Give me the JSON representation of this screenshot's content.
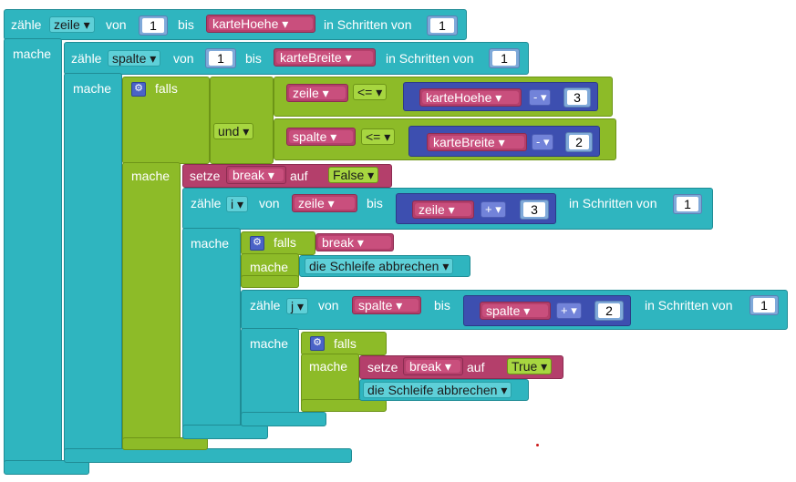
{
  "keywords": {
    "count": "zähle",
    "from": "von",
    "to": "bis",
    "step": "in Schritten von",
    "do": "mache",
    "if": "falls",
    "and": "und",
    "set": "setze",
    "on": "auf",
    "break_loop": "die Schleife abbrechen"
  },
  "vars": {
    "zeile": "zeile ▾",
    "spalte": "spalte ▾",
    "i": "i ▾",
    "j": "j ▾",
    "break": "break ▾",
    "karteHoehe": "karteHoehe ▾",
    "karteBreite": "karteBreite ▾"
  },
  "ops": {
    "le": "<= ▾",
    "minus": "- ▾",
    "plus": "+ ▾",
    "and_dd": "und ▾",
    "break_dd": "die Schleife abbrechen ▾"
  },
  "bools": {
    "false": "False ▾",
    "true": "True ▾"
  },
  "nums": {
    "one": "1",
    "two": "2",
    "three": "3"
  },
  "colors": {
    "loop": "#2fb5bf",
    "logic": "#8dbb28",
    "variable": "#b43f6b",
    "math": "#3d4fb0"
  }
}
